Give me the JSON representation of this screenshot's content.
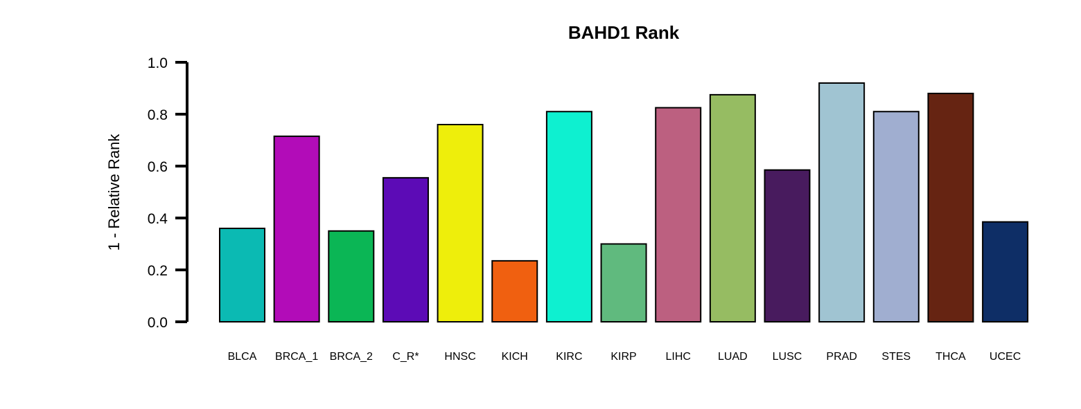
{
  "chart_data": {
    "type": "bar",
    "title": "BAHD1 Rank",
    "xlabel": "",
    "ylabel": "1 - Relative Rank",
    "ylim": [
      0,
      1
    ],
    "yticks": [
      "0.0",
      "0.2",
      "0.4",
      "0.6",
      "0.8",
      "1.0"
    ],
    "grid": false,
    "legend": "none",
    "categories": [
      "BLCA",
      "BRCA_1",
      "BRCA_2",
      "C_R*",
      "HNSC",
      "KICH",
      "KIRC",
      "KIRP",
      "LIHC",
      "LUAD",
      "LUSC",
      "PRAD",
      "STES",
      "THCA",
      "UCEC"
    ],
    "values": [
      0.36,
      0.715,
      0.35,
      0.555,
      0.76,
      0.235,
      0.81,
      0.3,
      0.825,
      0.875,
      0.585,
      0.92,
      0.81,
      0.88,
      0.385
    ],
    "colors": [
      "#0BBAB3",
      "#B20CB8",
      "#0BB655",
      "#5C0BB6",
      "#EEEE0B",
      "#F06010",
      "#0EF0D0",
      "#60BA7E",
      "#BC6080",
      "#96BC62",
      "#481B5E",
      "#A0C4D2",
      "#A0AED0",
      "#662412",
      "#0E2E66"
    ]
  }
}
